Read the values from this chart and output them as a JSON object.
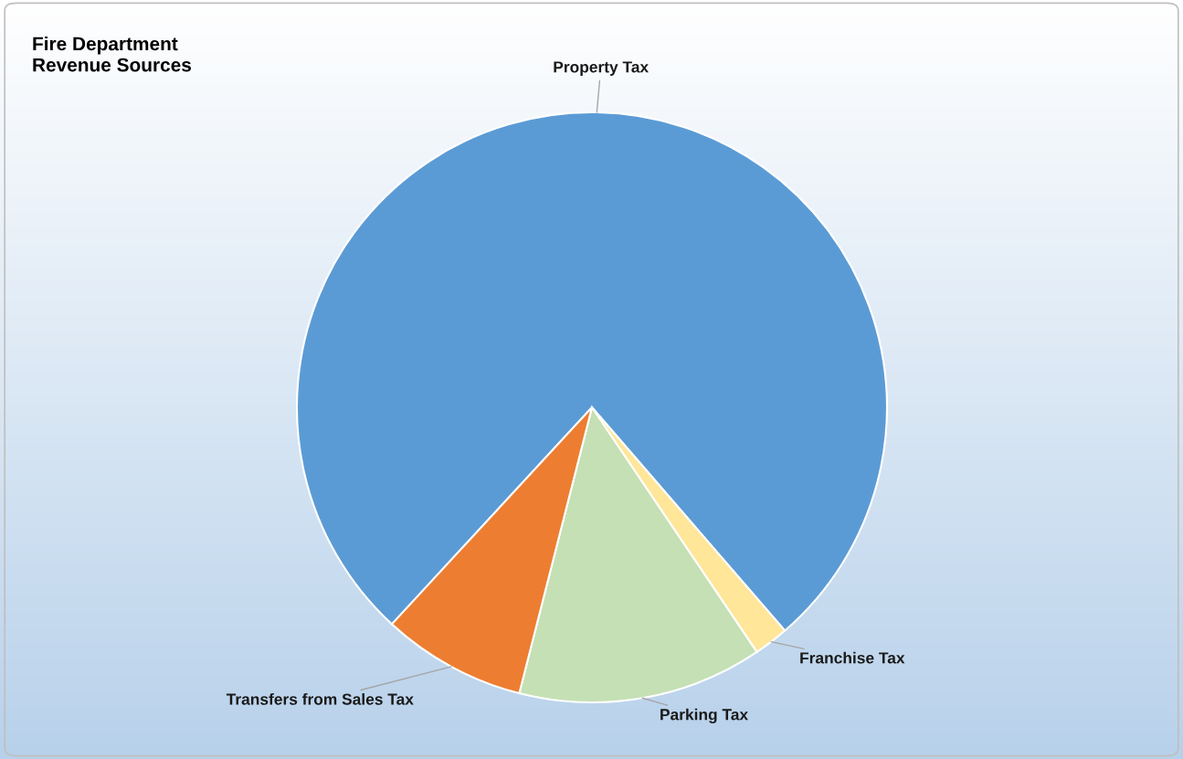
{
  "chart_data": {
    "type": "pie",
    "title": "Fire Department\nRevenue Sources",
    "categories": [
      "Property Tax",
      "Franchise Tax",
      "Parking Tax",
      "Transfers from Sales Tax"
    ],
    "values": [
      76.8,
      1.9,
      13.4,
      7.9
    ],
    "colors": [
      "#5b9bd5",
      "#ffe699",
      "#c5e0b4",
      "#ed7d31"
    ],
    "legend": false
  }
}
